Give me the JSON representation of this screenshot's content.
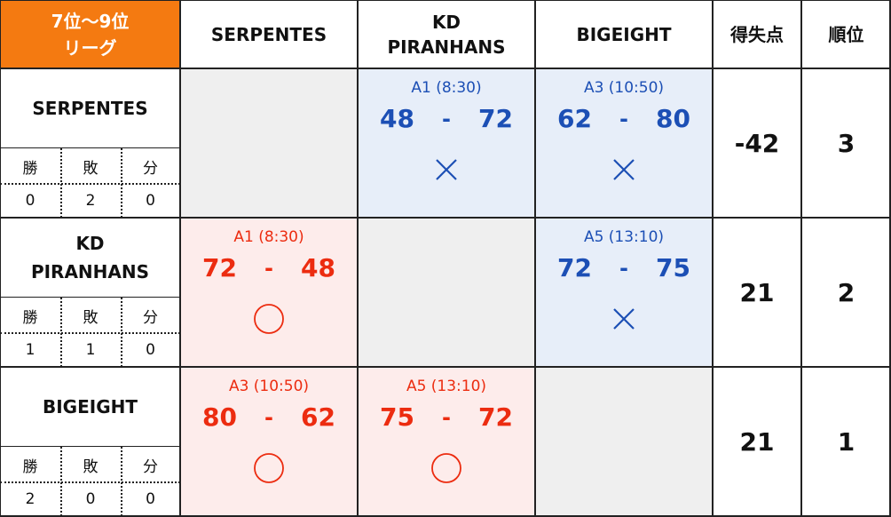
{
  "header": {
    "corner_line1": "7位〜9位",
    "corner_line2": "リーグ",
    "cols": [
      {
        "line1": "SERPENTES",
        "line2": ""
      },
      {
        "line1": "KD",
        "line2": "PIRANHANS"
      },
      {
        "line1": "BIGEIGHT",
        "line2": ""
      }
    ],
    "points_label": "得失点",
    "rank_label": "順位"
  },
  "wld_labels": {
    "win": "勝",
    "loss": "敗",
    "draw": "分"
  },
  "colors": {
    "accent": "#f47a11",
    "lose_blue": "#1c4fb5",
    "win_red": "#ec2c10",
    "lose_bg": "#e7eef9",
    "win_bg": "#fdeceb",
    "blank_bg": "#efefef"
  },
  "rows": [
    {
      "name_line1": "SERPENTES",
      "name_line2": "",
      "wins": "0",
      "losses": "2",
      "draws": "0",
      "points": "-42",
      "rank": "3",
      "matches": [
        null,
        {
          "slot": "A1 (8:30)",
          "own": "48",
          "sep": "-",
          "opp": "72",
          "result": "lose",
          "icon": "cross-icon"
        },
        {
          "slot": "A3 (10:50)",
          "own": "62",
          "sep": "-",
          "opp": "80",
          "result": "lose",
          "icon": "cross-icon"
        }
      ]
    },
    {
      "name_line1": "KD",
      "name_line2": "PIRANHANS",
      "wins": "1",
      "losses": "1",
      "draws": "0",
      "points": "21",
      "rank": "2",
      "matches": [
        {
          "slot": "A1 (8:30)",
          "own": "72",
          "sep": "-",
          "opp": "48",
          "result": "win",
          "icon": "circle-icon"
        },
        null,
        {
          "slot": "A5 (13:10)",
          "own": "72",
          "sep": "-",
          "opp": "75",
          "result": "lose",
          "icon": "cross-icon"
        }
      ]
    },
    {
      "name_line1": "BIGEIGHT",
      "name_line2": "",
      "wins": "2",
      "losses": "0",
      "draws": "0",
      "points": "21",
      "rank": "1",
      "matches": [
        {
          "slot": "A3 (10:50)",
          "own": "80",
          "sep": "-",
          "opp": "62",
          "result": "win",
          "icon": "circle-icon"
        },
        {
          "slot": "A5 (13:10)",
          "own": "75",
          "sep": "-",
          "opp": "72",
          "result": "win",
          "icon": "circle-icon"
        },
        null
      ]
    }
  ]
}
